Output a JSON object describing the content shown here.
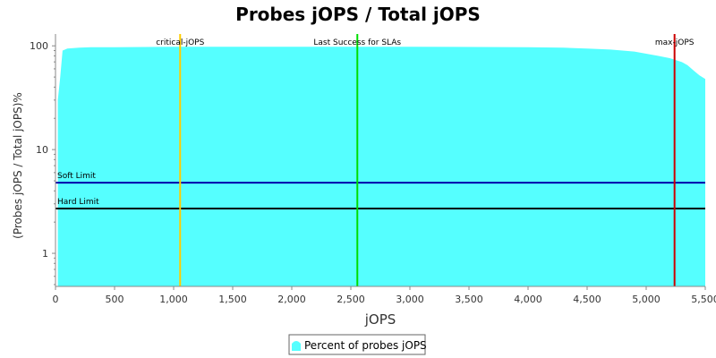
{
  "chart_data": {
    "type": "area",
    "title": "Probes jOPS / Total jOPS",
    "xlabel": "jOPS",
    "ylabel": "(Probes jOPS / Total jOPS)%",
    "xlim": [
      0,
      5500
    ],
    "ylim": [
      0.48,
      130
    ],
    "y_scale": "log",
    "grid": false,
    "legend_position": "bottom",
    "colors": {
      "area": "#55ffff",
      "critical_jops": "#ffcc00",
      "last_success": "#00dd00",
      "max_jops": "#cc0000",
      "soft_limit": "#0000aa",
      "hard_limit": "#000000"
    },
    "x_ticks": [
      {
        "value": 0,
        "label": "0"
      },
      {
        "value": 500,
        "label": "500"
      },
      {
        "value": 1000,
        "label": "1,000"
      },
      {
        "value": 1500,
        "label": "1,500"
      },
      {
        "value": 2000,
        "label": "2,000"
      },
      {
        "value": 2500,
        "label": "2,500"
      },
      {
        "value": 3000,
        "label": "3,000"
      },
      {
        "value": 3500,
        "label": "3,500"
      },
      {
        "value": 4000,
        "label": "4,000"
      },
      {
        "value": 4500,
        "label": "4,500"
      },
      {
        "value": 5000,
        "label": "5,000"
      },
      {
        "value": 5500,
        "label": "5,500"
      }
    ],
    "y_ticks": [
      {
        "value": 1,
        "label": "1"
      },
      {
        "value": 10,
        "label": "10"
      },
      {
        "value": 100,
        "label": "100"
      }
    ],
    "series": [
      {
        "name": "Percent of probes jOPS",
        "x": [
          20,
          40,
          60,
          80,
          100,
          150,
          200,
          300,
          500,
          1000,
          2000,
          3000,
          4000,
          4300,
          4500,
          4700,
          4900,
          5000,
          5100,
          5200,
          5250,
          5300,
          5350,
          5400,
          5450,
          5500
        ],
        "y": [
          30,
          50,
          90,
          92,
          94,
          95,
          96,
          97,
          97,
          98,
          98,
          98,
          97,
          96,
          94,
          92,
          88,
          84,
          80,
          76,
          73,
          70,
          65,
          58,
          52,
          48
        ]
      }
    ],
    "vertical_markers": [
      {
        "name": "critical-jOPS",
        "x": 1055
      },
      {
        "name": "Last Success for SLAs",
        "x": 2555
      },
      {
        "name": "max-jOPS",
        "x": 5240
      }
    ],
    "horizontal_markers": [
      {
        "name": "Soft Limit",
        "y": 4.8
      },
      {
        "name": "Hard Limit",
        "y": 2.7
      }
    ]
  }
}
